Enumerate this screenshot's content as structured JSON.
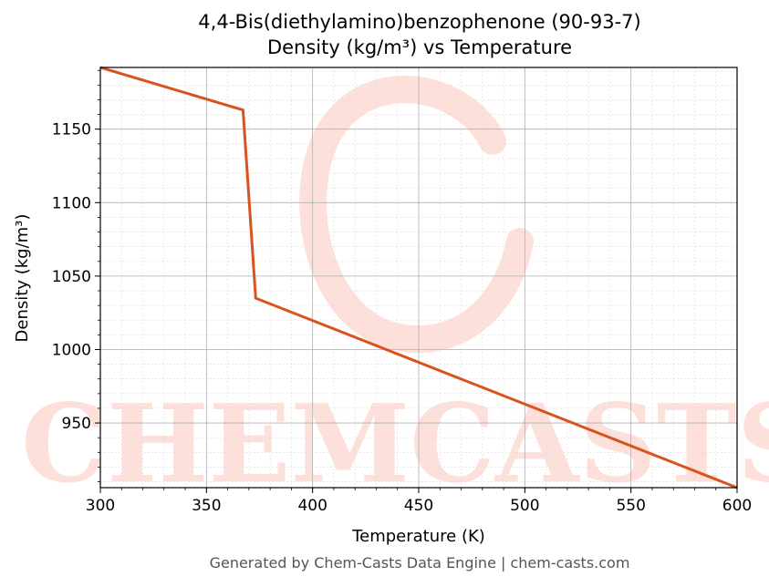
{
  "title_line1": "4,4-Bis(diethylamino)benzophenone (90-93-7)",
  "title_line2": "Density (kg/m³) vs Temperature",
  "footer": "Generated by Chem-Casts Data Engine | chem-casts.com",
  "watermark": "CHEMCASTS",
  "colors": {
    "line": "#d9531e",
    "watermark": "#fde0da",
    "grid_major": "#b0b0b0",
    "grid_minor": "#dddddd"
  },
  "chart_data": {
    "type": "line",
    "title": "4,4-Bis(diethylamino)benzophenone (90-93-7)\nDensity (kg/m³) vs Temperature",
    "xlabel": "Temperature (K)",
    "ylabel": "Density (kg/m³)",
    "xlim": [
      300,
      600
    ],
    "ylim": [
      906,
      1192
    ],
    "xticks": [
      300,
      350,
      400,
      450,
      500,
      550,
      600
    ],
    "yticks": [
      950,
      1000,
      1050,
      1100,
      1150
    ],
    "grid": true,
    "series": [
      {
        "x": [
          300,
          367.2,
          373.2,
          600
        ],
        "y": [
          1192,
          1163,
          1035,
          906
        ]
      }
    ]
  }
}
